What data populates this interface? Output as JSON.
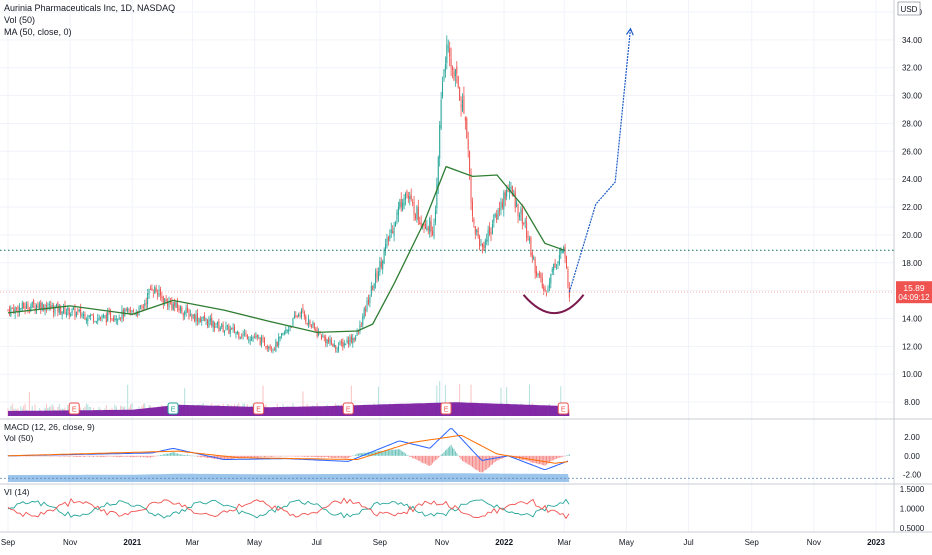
{
  "header": {
    "title": "Aurinia Pharmaceuticals Inc, 1D, NASDAQ",
    "volume_indicator": "Vol (50)",
    "ma_indicator": "MA (50, close, 0)"
  },
  "price_axis": {
    "currency": "USD",
    "current_price": "15.89",
    "countdown": "04:09:12",
    "current_price_color": "#ef5350"
  },
  "macd_panel": {
    "label": "MACD (12, 26, close, 9)",
    "volume_label": "Vol (50)",
    "ticks": [
      "2.00",
      "0.00",
      "-2.00"
    ]
  },
  "vi_panel": {
    "label": "VI (14)",
    "ticks": [
      "1.5000",
      "1.0000",
      "0.5000"
    ]
  },
  "time_axis": {
    "labels": [
      "Sep",
      "Nov",
      "2021",
      "Mar",
      "May",
      "Jul",
      "Sep",
      "Nov",
      "2022",
      "Mar",
      "May",
      "Jul",
      "Sep",
      "Nov",
      "2023"
    ]
  },
  "colors": {
    "up": "#26a69a",
    "down": "#ef5350",
    "ma": "#2e7d32",
    "volume_ma": "#7b1fa2",
    "arc": "#7b1a4e",
    "projection": "#1e5bc6",
    "macd_line": "#2962ff",
    "signal_line": "#ff6d00",
    "vi_plus": "#26a69a",
    "vi_minus": "#ef5350"
  },
  "earnings_marker": "E",
  "chart_data": {
    "type": "candlestick",
    "ylim": [
      7,
      36
    ],
    "y_ticks": [
      8,
      10,
      12,
      14,
      16,
      18,
      20,
      22,
      24,
      26,
      28,
      30,
      32,
      34,
      36
    ],
    "x_axis": [
      "Sep",
      "Nov",
      "2021",
      "Mar",
      "May",
      "Jul",
      "Sep",
      "Nov",
      "2022",
      "Mar",
      "May",
      "Jul",
      "Sep",
      "Nov",
      "2023"
    ],
    "last_price": 15.89,
    "resistance_level": 18.9,
    "price_path": [
      [
        "2020-09-01",
        14.6
      ],
      [
        "2020-10-01",
        15.0
      ],
      [
        "2020-11-01",
        14.5
      ],
      [
        "2020-12-01",
        14.0
      ],
      [
        "2021-01-10",
        14.6
      ],
      [
        "2021-01-20",
        16.3
      ],
      [
        "2021-02-01",
        15.3
      ],
      [
        "2021-03-01",
        14.2
      ],
      [
        "2021-04-01",
        13.3
      ],
      [
        "2021-05-01",
        12.6
      ],
      [
        "2021-05-20",
        11.9
      ],
      [
        "2021-06-15",
        14.5
      ],
      [
        "2021-07-01",
        13.0
      ],
      [
        "2021-07-20",
        11.9
      ],
      [
        "2021-08-10",
        12.8
      ],
      [
        "2021-08-25",
        16.3
      ],
      [
        "2021-09-10",
        19.8
      ],
      [
        "2021-09-25",
        23.1
      ],
      [
        "2021-10-10",
        21.2
      ],
      [
        "2021-10-25",
        20.4
      ],
      [
        "2021-11-01",
        31.0
      ],
      [
        "2021-11-05",
        33.2
      ],
      [
        "2021-11-15",
        31.2
      ],
      [
        "2021-11-25",
        28.0
      ],
      [
        "2021-12-01",
        21.0
      ],
      [
        "2021-12-10",
        19.0
      ],
      [
        "2021-12-25",
        21.5
      ],
      [
        "2022-01-05",
        23.5
      ],
      [
        "2022-01-20",
        21.0
      ],
      [
        "2022-02-01",
        17.5
      ],
      [
        "2022-02-10",
        15.8
      ],
      [
        "2022-02-20",
        18.0
      ],
      [
        "2022-02-28",
        19.0
      ],
      [
        "2022-03-06",
        15.89
      ]
    ],
    "moving_average_50": [
      [
        "2020-09-01",
        14.4
      ],
      [
        "2020-11-01",
        14.9
      ],
      [
        "2021-01-01",
        14.3
      ],
      [
        "2021-02-10",
        15.3
      ],
      [
        "2021-04-01",
        14.6
      ],
      [
        "2021-05-15",
        13.8
      ],
      [
        "2021-07-01",
        13.0
      ],
      [
        "2021-08-10",
        13.1
      ],
      [
        "2021-08-25",
        13.6
      ],
      [
        "2021-09-15",
        16.5
      ],
      [
        "2021-10-15",
        21.0
      ],
      [
        "2021-11-05",
        24.9
      ],
      [
        "2021-12-01",
        24.2
      ],
      [
        "2021-12-25",
        24.3
      ],
      [
        "2022-01-20",
        22.0
      ],
      [
        "2022-02-10",
        19.4
      ],
      [
        "2022-03-01",
        18.9
      ]
    ],
    "volume_ma_50": [
      [
        "2020-09-01",
        0.2
      ],
      [
        "2021-01-01",
        0.25
      ],
      [
        "2021-02-15",
        0.45
      ],
      [
        "2021-05-15",
        0.35
      ],
      [
        "2021-07-15",
        0.4
      ],
      [
        "2021-09-15",
        0.48
      ],
      [
        "2021-11-15",
        0.55
      ],
      [
        "2022-03-01",
        0.4
      ]
    ],
    "cup_arc": [
      [
        "2022-01-20",
        15.7
      ],
      [
        "2022-02-20",
        14.0
      ],
      [
        "2022-03-20",
        15.7
      ]
    ],
    "projection": [
      [
        "2022-03-06",
        15.89
      ],
      [
        "2022-04-01",
        22.2
      ],
      [
        "2022-04-20",
        23.8
      ],
      [
        "2022-05-05",
        34.8
      ]
    ],
    "earnings_dates": [
      "2020-11-05",
      "2021-02-10",
      "2021-05-05",
      "2021-08-01",
      "2021-11-05",
      "2022-02-28"
    ],
    "macd": {
      "ylim": [
        -2.8,
        3.4
      ],
      "macd_line": [
        [
          "2020-09-01",
          0.0
        ],
        [
          "2021-01-20",
          0.3
        ],
        [
          "2021-02-10",
          0.8
        ],
        [
          "2021-04-01",
          -0.4
        ],
        [
          "2021-06-01",
          -0.3
        ],
        [
          "2021-08-01",
          -0.6
        ],
        [
          "2021-09-20",
          1.6
        ],
        [
          "2021-10-20",
          0.8
        ],
        [
          "2021-11-10",
          3.0
        ],
        [
          "2021-12-10",
          -0.5
        ],
        [
          "2022-01-05",
          0.0
        ],
        [
          "2022-02-10",
          -1.5
        ],
        [
          "2022-03-06",
          -0.5
        ]
      ],
      "signal_line": [
        [
          "2020-09-01",
          0.0
        ],
        [
          "2021-02-15",
          0.5
        ],
        [
          "2021-04-15",
          -0.2
        ],
        [
          "2021-08-10",
          -0.4
        ],
        [
          "2021-10-01",
          1.4
        ],
        [
          "2021-11-20",
          2.2
        ],
        [
          "2021-12-25",
          0.2
        ],
        [
          "2022-02-20",
          -0.8
        ],
        [
          "2022-03-06",
          -0.6
        ]
      ]
    },
    "vi": {
      "ylim": [
        0.45,
        1.55
      ],
      "ticks": [
        1.5,
        1.0,
        0.5
      ],
      "vi_plus_range": [
        0.7,
        1.3
      ],
      "vi_minus_range": [
        0.7,
        1.3
      ]
    }
  }
}
